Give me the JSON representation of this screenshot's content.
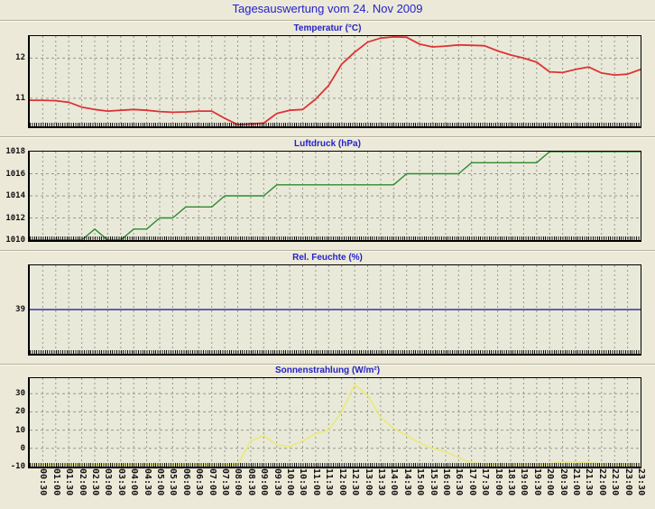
{
  "page": {
    "title": "Tagesauswertung vom 24. Nov 2009"
  },
  "colors": {
    "background": "#ece9d8",
    "plot_background": "#e9e9da",
    "border": "#000000",
    "grid": "#97978e",
    "title_blue": "#2323c8",
    "temperature_red": "#dd3333",
    "pressure_green": "#2e8b2e",
    "humidity_blue": "#3232a8",
    "solar_yellow": "#e9e982"
  },
  "time_labels": [
    "00:30",
    "01:00",
    "01:30",
    "02:00",
    "02:30",
    "03:00",
    "03:30",
    "04:00",
    "04:30",
    "05:00",
    "05:30",
    "06:00",
    "06:30",
    "07:00",
    "07:30",
    "08:00",
    "08:30",
    "09:00",
    "09:30",
    "10:00",
    "10:30",
    "11:00",
    "11:30",
    "12:00",
    "12:30",
    "13:00",
    "13:30",
    "14:00",
    "14:30",
    "15:00",
    "15:30",
    "16:00",
    "16:30",
    "17:00",
    "17:30",
    "18:00",
    "18:30",
    "19:00",
    "19:30",
    "20:00",
    "20:30",
    "21:00",
    "21:30",
    "22:00",
    "22:30",
    "23:00",
    "23:30"
  ],
  "chart_data": [
    {
      "id": "temperatur",
      "type": "line",
      "title": "Temperatur (°C)",
      "color": "#dd3333",
      "ylim": [
        10.3,
        12.55
      ],
      "yticks": [
        {
          "value": 12,
          "label": "12"
        },
        {
          "value": 11,
          "label": "11"
        }
      ],
      "hgrid": [
        12,
        11
      ],
      "x_start": "00:00",
      "x_end": "23:30",
      "x_step_minutes": 30,
      "values": [
        10.95,
        10.95,
        10.94,
        10.9,
        10.78,
        10.72,
        10.68,
        10.7,
        10.72,
        10.7,
        10.67,
        10.65,
        10.66,
        10.68,
        10.68,
        10.5,
        10.34,
        10.36,
        10.38,
        10.62,
        10.7,
        10.72,
        10.98,
        11.32,
        11.85,
        12.15,
        12.4,
        12.5,
        12.53,
        12.52,
        12.35,
        12.28,
        12.3,
        12.33,
        12.32,
        12.31,
        12.18,
        12.08,
        12.0,
        11.9,
        11.66,
        11.64,
        11.72,
        11.78,
        11.63,
        11.58,
        11.6,
        11.72
      ]
    },
    {
      "id": "luftdruck",
      "type": "line",
      "title": "Luftdruck (hPa)",
      "color": "#2e8b2e",
      "ylim": [
        1010,
        1018
      ],
      "yticks": [
        {
          "value": 1018,
          "label": "1018"
        },
        {
          "value": 1016,
          "label": "1016"
        },
        {
          "value": 1014,
          "label": "1014"
        },
        {
          "value": 1012,
          "label": "1012"
        },
        {
          "value": 1010,
          "label": "1010"
        }
      ],
      "hgrid": [
        1016,
        1014,
        1012
      ],
      "x_start": "00:00",
      "x_end": "23:30",
      "x_step_minutes": 30,
      "values": [
        1010,
        1010,
        1010,
        1010,
        1010,
        1011,
        1010,
        1010,
        1011,
        1011,
        1012,
        1012,
        1013,
        1013,
        1013,
        1014,
        1014,
        1014,
        1014,
        1015,
        1015,
        1015,
        1015,
        1015,
        1015,
        1015,
        1015,
        1015,
        1015,
        1016,
        1016,
        1016,
        1016,
        1016,
        1017,
        1017,
        1017,
        1017,
        1017,
        1017,
        1018,
        1018,
        1018,
        1018,
        1018,
        1018,
        1018,
        1018
      ]
    },
    {
      "id": "rel-feuchte",
      "type": "line",
      "title": "Rel. Feuchte (%)",
      "color": "#3232a8",
      "ylim": [
        37,
        41
      ],
      "yticks": [
        {
          "value": 39,
          "label": "39"
        }
      ],
      "hgrid": [],
      "x_start": "00:00",
      "x_end": "23:30",
      "x_step_minutes": 30,
      "values": [
        39,
        39,
        39,
        39,
        39,
        39,
        39,
        39,
        39,
        39,
        39,
        39,
        39,
        39,
        39,
        39,
        39,
        39,
        39,
        39,
        39,
        39,
        39,
        39,
        39,
        39,
        39,
        39,
        39,
        39,
        39,
        39,
        39,
        39,
        39,
        39,
        39,
        39,
        39,
        39,
        39,
        39,
        39,
        39,
        39,
        39,
        39,
        39
      ]
    },
    {
      "id": "sonnenstrahlung",
      "type": "line",
      "title": "Sonnenstrahlung (W/m²)",
      "color": "#e9e982",
      "ylim": [
        -10,
        38.5
      ],
      "yticks": [
        {
          "value": 30,
          "label": "30"
        },
        {
          "value": 20,
          "label": "20"
        },
        {
          "value": 10,
          "label": "10"
        },
        {
          "value": 0,
          "label": "0"
        },
        {
          "value": -10,
          "label": "-10"
        }
      ],
      "hgrid": [
        30,
        20,
        10,
        0
      ],
      "x_start": "00:00",
      "x_end": "23:30",
      "x_step_minutes": 30,
      "values": [
        -9,
        -9,
        -9,
        -9,
        -9,
        -9,
        -9,
        -9,
        -9,
        -9,
        -9,
        -9,
        -9,
        -9,
        -9,
        -9,
        -9,
        4,
        7,
        2,
        1,
        4,
        8,
        10,
        20,
        35,
        29,
        17,
        11,
        7,
        3,
        0,
        -2,
        -5,
        -8,
        -8.5,
        -8.5,
        -8.5,
        -8.5,
        -8.5,
        -8.5,
        -7.5,
        -7.5,
        -8,
        -8.5,
        -8.5,
        -8.5,
        -8.5
      ]
    }
  ]
}
